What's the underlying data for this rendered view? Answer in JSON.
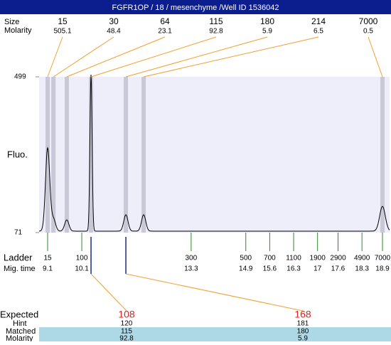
{
  "header": {
    "title": "FGFR1OP / 18 / mesenchyme /Well ID 1536042"
  },
  "labels": {
    "size": "Size",
    "molarity": "Molarity",
    "fluo": "Fluo.",
    "ladder": "Ladder",
    "mig_time": "Mig. time",
    "expected": "Expected",
    "hint": "Hint",
    "matched": "Matched",
    "molarity_row": "Molarity"
  },
  "yaxis": {
    "ticks": [
      71,
      499
    ]
  },
  "baseline": 75,
  "peaks": [
    {
      "size": 15,
      "molarity": 505.1,
      "time": 9.1,
      "fluo": 303
    },
    {
      "size": 30,
      "molarity": 48.4,
      "time": 9.27,
      "fluo": 108
    },
    {
      "size": 64,
      "molarity": 23.1,
      "time": 9.66,
      "fluo": 106
    },
    {
      "size": 115,
      "molarity": 92.8,
      "time": 10.37,
      "fluo": 505
    },
    {
      "size": 180,
      "molarity": 5.9,
      "time": 11.39,
      "fluo": 120
    },
    {
      "size": 214,
      "molarity": 6.5,
      "time": 11.91,
      "fluo": 120
    },
    {
      "size": 7000,
      "molarity": 0.5,
      "time": 18.9,
      "fluo": 143
    }
  ],
  "ladder": [
    {
      "size": 15,
      "time": 9.1
    },
    {
      "size": 100,
      "time": 10.1
    },
    {
      "size": 300,
      "time": 13.3
    },
    {
      "size": 500,
      "time": 14.9
    },
    {
      "size": 700,
      "time": 15.6
    },
    {
      "size": 1100,
      "time": 16.3
    },
    {
      "size": 1900,
      "time": 17
    },
    {
      "size": 2900,
      "time": 17.6
    },
    {
      "size": 4900,
      "time": 18.3
    },
    {
      "size": 7000,
      "time": 18.9
    }
  ],
  "expected": [
    {
      "expected": 108,
      "hint": 120,
      "matched": 115,
      "molarity": 92.8,
      "time": 10.37
    },
    {
      "expected": 168,
      "hint": 181,
      "matched": 180,
      "molarity": 5.9,
      "time": 11.39
    }
  ]
}
